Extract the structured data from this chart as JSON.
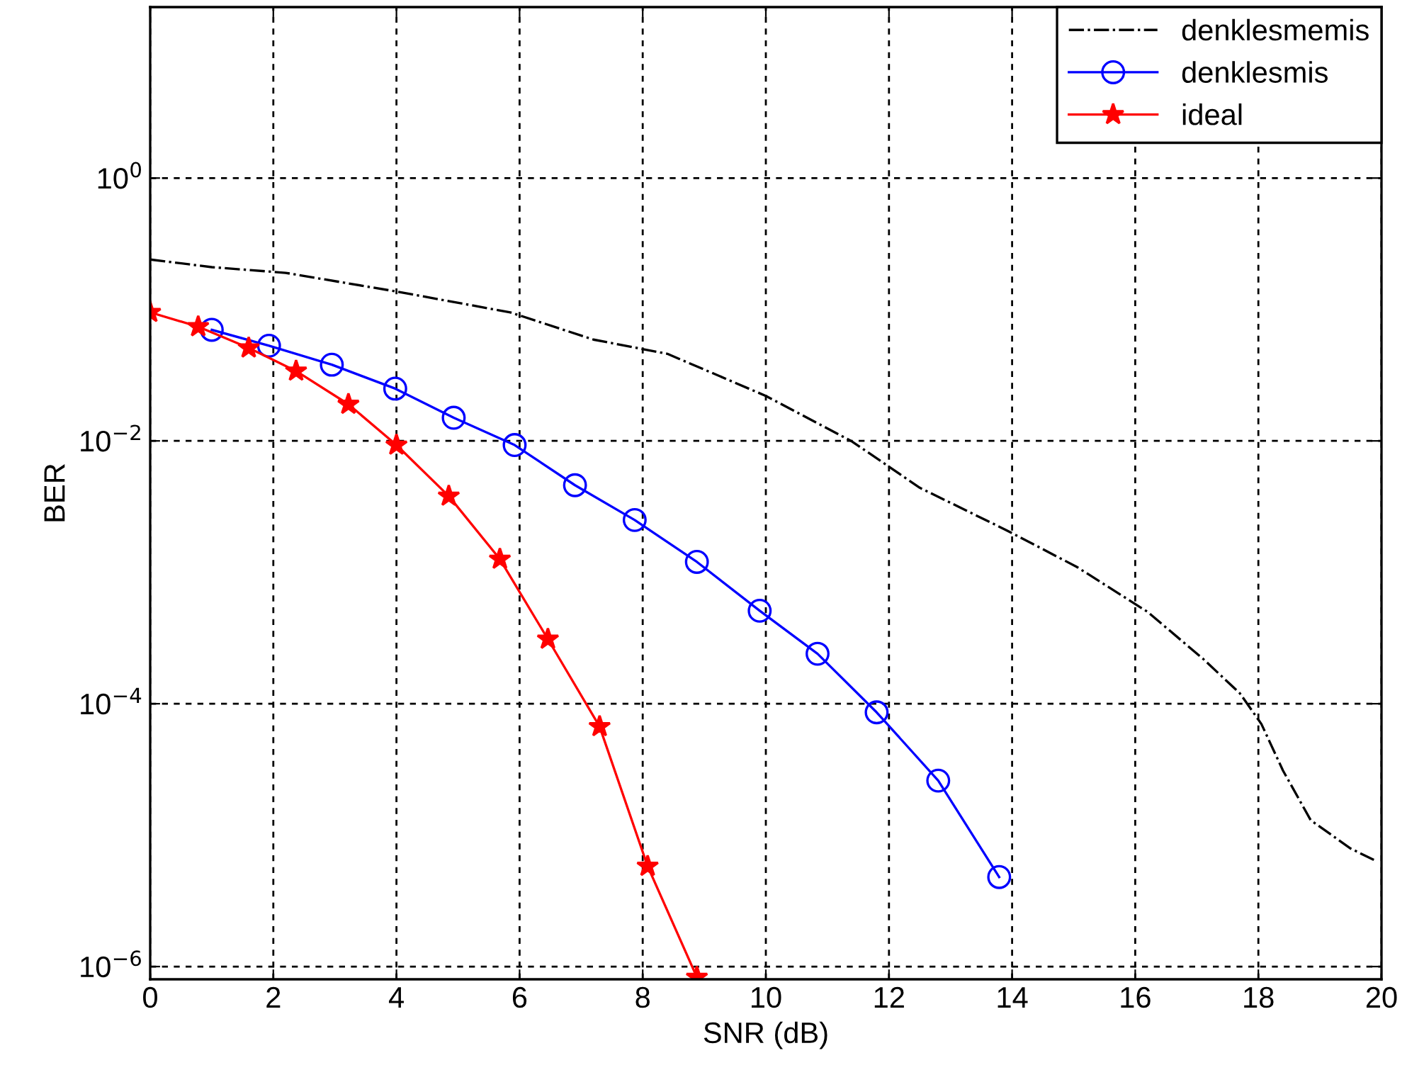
{
  "chart_data": {
    "type": "line",
    "xlabel": "SNR (dB)",
    "ylabel": "BER",
    "log": "y",
    "grid": true,
    "legend": "top right",
    "xlim": [
      0,
      20
    ],
    "xticks": [
      0,
      2,
      4,
      6,
      8,
      10,
      12,
      14,
      16,
      18,
      20
    ],
    "ylim": [
      8e-07,
      20
    ],
    "yticks": [
      {
        "value": 1,
        "label": "10$^{0}$"
      },
      {
        "value": 0.01,
        "label": "10$^{−2}$"
      },
      {
        "value": 0.0001,
        "label": "10$^{−4}$"
      },
      {
        "value": 1e-06,
        "label": "10$^{−6}$"
      }
    ],
    "series": [
      {
        "name": "denklesmemis",
        "color": "#000000",
        "marker": "none",
        "line_style": "dashdot",
        "x": [
          0,
          1,
          2.2,
          4,
          5.85,
          7.2,
          8.4,
          10,
          11.4,
          12.5,
          13.9,
          15.05,
          16.2,
          17.1,
          17.7,
          18.05,
          18.4,
          18.85,
          19.5,
          19.9
        ],
        "values": [
          0.24,
          0.21,
          0.19,
          0.137,
          0.095,
          0.059,
          0.046,
          0.022,
          0.0099,
          0.0044,
          0.0021,
          0.0011,
          0.0005,
          0.00022,
          0.00012,
          7e-05,
          3.1e-05,
          1.3e-05,
          7.9e-06,
          6.4e-06
        ]
      },
      {
        "name": "denklesmis",
        "color": "#0000ff",
        "marker": "circle",
        "line_style": "solid",
        "x": [
          1,
          1.93,
          2.95,
          3.98,
          4.93,
          5.92,
          6.9,
          7.87,
          8.88,
          9.9,
          10.84,
          11.8,
          12.8,
          13.79
        ],
        "values": [
          0.07,
          0.053,
          0.038,
          0.025,
          0.015,
          0.0093,
          0.0046,
          0.0025,
          0.0012,
          0.00051,
          0.00024,
          8.6e-05,
          2.6e-05,
          4.8e-06
        ]
      },
      {
        "name": "ideal",
        "color": "#ff0000",
        "marker": "star",
        "line_style": "solid",
        "x": [
          0,
          0.78,
          1.6,
          2.37,
          3.22,
          4,
          4.85,
          5.68,
          6.46,
          7.3,
          8.08,
          8.88
        ],
        "values": [
          0.095,
          0.074,
          0.051,
          0.034,
          0.019,
          0.0093,
          0.0038,
          0.00126,
          0.00031,
          6.7e-05,
          5.8e-06,
          8.3e-07
        ]
      }
    ]
  }
}
